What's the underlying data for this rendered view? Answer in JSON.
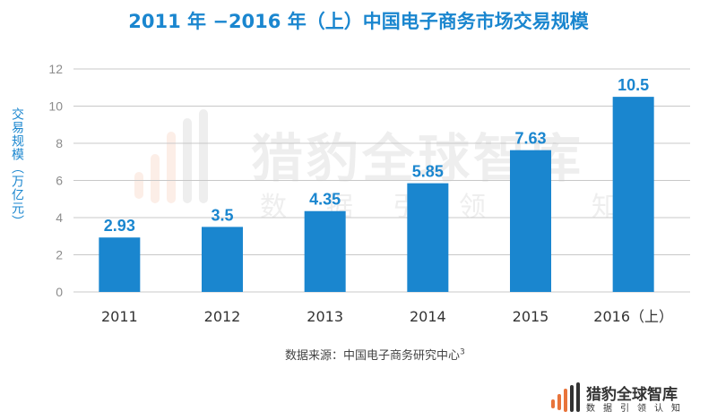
{
  "chart_data": {
    "type": "bar",
    "title": "2011 年 −2016 年（上）中国电子商务市场交易规模",
    "ylabel": "交易规模（万亿元）",
    "xlabel": "",
    "categories": [
      "2011",
      "2012",
      "2013",
      "2014",
      "2015",
      "2016（上）"
    ],
    "values": [
      2.93,
      3.5,
      4.35,
      5.85,
      7.63,
      10.5
    ],
    "value_labels": [
      "2.93",
      "3.5",
      "4.35",
      "5.85",
      "7.63",
      "10.5"
    ],
    "ylim": [
      0,
      12
    ],
    "yticks": [
      "0",
      "2",
      "4",
      "6",
      "8",
      "10",
      "12"
    ],
    "grid": true,
    "bar_color": "#1a86cf",
    "label_color": "#1a86cf"
  },
  "source": {
    "text": "数据来源：中国电子商务研究中心",
    "note": "3"
  },
  "watermark": {
    "name": "猎豹全球智库",
    "slogan": "数据引领认知"
  },
  "brand": {
    "name": "猎豹全球智库",
    "slogan": "数据引领认知",
    "logo_icon": "cheetah-bars-icon"
  }
}
